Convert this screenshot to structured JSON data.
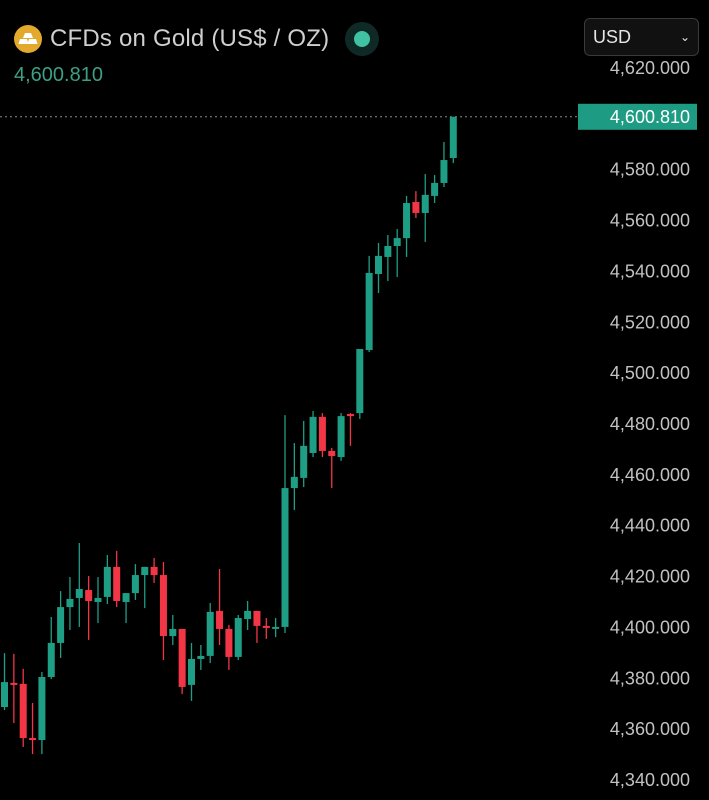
{
  "header": {
    "title": "CFDs on Gold (US$ / OZ)",
    "icon": "gold-bars-icon",
    "status_icon": "market-open-dot-icon",
    "price": "4,600.810",
    "currency": "USD"
  },
  "colors": {
    "up": "#1f9e86",
    "down": "#f23645",
    "price_text": "#3d9f84",
    "icon": "#e2a92c"
  },
  "chart_data": {
    "type": "candlestick",
    "ylim": [
      4340,
      4620
    ],
    "yticks": [
      "4,340.000",
      "4,360.000",
      "4,380.000",
      "4,400.000",
      "4,420.000",
      "4,440.000",
      "4,460.000",
      "4,480.000",
      "4,500.000",
      "4,520.000",
      "4,540.000",
      "4,560.000",
      "4,580.000",
      "4,620.000"
    ],
    "ytick_values": [
      4340,
      4360,
      4380,
      4400,
      4420,
      4440,
      4460,
      4480,
      4500,
      4520,
      4540,
      4560,
      4580,
      4620
    ],
    "last_price": 4600.81,
    "last_price_label": "4,600.810",
    "grid": false,
    "candles": [
      [
        4368.7,
        4389.9,
        4367.5,
        4378.5
      ],
      [
        4378.2,
        4389.6,
        4362.4,
        4377.4
      ],
      [
        4377.8,
        4383.7,
        4353.0,
        4356.5
      ],
      [
        4356.5,
        4370.3,
        4350.2,
        4356.1
      ],
      [
        4355.7,
        4382.5,
        4350.2,
        4380.5
      ],
      [
        4380.5,
        4404.1,
        4379.7,
        4393.9
      ],
      [
        4393.9,
        4414.3,
        4388.0,
        4408.0
      ],
      [
        4408.0,
        4419.8,
        4399.0,
        4411.2
      ],
      [
        4411.6,
        4433.2,
        4400.2,
        4415.1
      ],
      [
        4414.7,
        4420.2,
        4395.1,
        4410.4
      ],
      [
        4410.0,
        4419.8,
        4401.7,
        4411.6
      ],
      [
        4412.0,
        4428.5,
        4409.2,
        4423.8
      ],
      [
        4423.8,
        4430.1,
        4408.0,
        4410.4
      ],
      [
        4410.0,
        4413.5,
        4401.7,
        4413.5
      ],
      [
        4413.5,
        4424.9,
        4410.8,
        4420.6
      ],
      [
        4420.6,
        4423.8,
        4407.6,
        4423.8
      ],
      [
        4423.8,
        4427.3,
        4417.5,
        4420.6
      ],
      [
        4420.6,
        4425.7,
        4387.2,
        4396.6
      ],
      [
        4396.6,
        4404.9,
        4393.1,
        4399.4
      ],
      [
        4399.4,
        4399.4,
        4373.8,
        4376.6
      ],
      [
        4377.4,
        4393.9,
        4371.1,
        4387.6
      ],
      [
        4387.6,
        4393.1,
        4383.3,
        4388.8
      ],
      [
        4388.8,
        4409.6,
        4386.0,
        4406.1
      ],
      [
        4406.5,
        4423.0,
        4393.1,
        4399.4
      ],
      [
        4399.4,
        4401.0,
        4383.3,
        4388.4
      ],
      [
        4388.4,
        4404.9,
        4387.2,
        4403.7
      ],
      [
        4403.3,
        4410.4,
        4399.0,
        4406.5
      ],
      [
        4406.5,
        4406.5,
        4393.9,
        4400.6
      ],
      [
        4400.6,
        4403.7,
        4395.5,
        4399.8
      ],
      [
        4399.8,
        4403.7,
        4396.2,
        4400.2
      ],
      [
        4400.2,
        4483.5,
        4397.8,
        4454.8
      ],
      [
        4454.8,
        4472.5,
        4446.2,
        4459.2
      ],
      [
        4458.8,
        4481.2,
        4455.2,
        4471.4
      ],
      [
        4468.6,
        4485.1,
        4467.0,
        4482.8
      ],
      [
        4482.8,
        4484.3,
        4467.0,
        4469.4
      ],
      [
        4469.4,
        4470.6,
        4454.8,
        4467.4
      ],
      [
        4467.0,
        4484.3,
        4465.5,
        4483.1
      ],
      [
        4483.9,
        4484.3,
        4471.4,
        4483.5
      ],
      [
        4484.3,
        4509.5,
        4482.0,
        4509.5
      ],
      [
        4509.1,
        4546.1,
        4508.3,
        4539.4
      ],
      [
        4539.0,
        4551.2,
        4531.5,
        4546.1
      ],
      [
        4545.7,
        4554.3,
        4536.2,
        4550.0
      ],
      [
        4550.0,
        4556.7,
        4537.8,
        4553.1
      ],
      [
        4553.1,
        4569.7,
        4545.7,
        4566.9
      ],
      [
        4567.3,
        4571.6,
        4561.0,
        4563.0
      ],
      [
        4563.0,
        4578.3,
        4551.6,
        4570.1
      ],
      [
        4569.7,
        4577.9,
        4566.9,
        4574.8
      ],
      [
        4574.8,
        4590.9,
        4573.2,
        4583.8
      ],
      [
        4584.6,
        4600.81,
        4582.6,
        4600.81
      ]
    ]
  }
}
